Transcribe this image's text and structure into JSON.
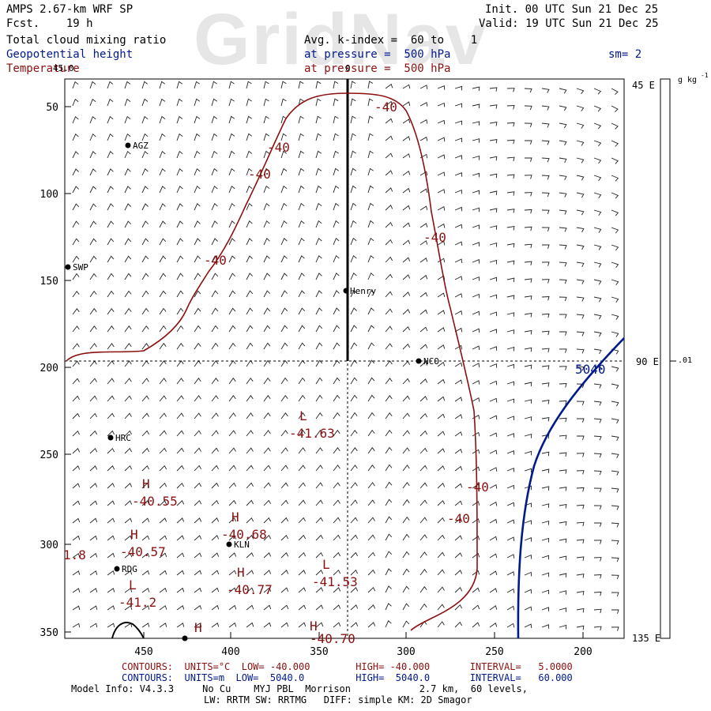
{
  "watermark": "GridNav",
  "header": {
    "title": "AMPS 2.67-km WRF SP",
    "fcst": "Fcst.    19 h",
    "init": "Init. 00 UTC Sun 21 Dec 25",
    "valid": "Valid: 19 UTC Sun 21 Dec 25",
    "field1": "Total cloud mixing ratio",
    "field2": "Geopotential height",
    "field3": "Temperature",
    "avg": "Avg. k-index =  60 to    1",
    "pressure1": "at pressure =  500 hPa",
    "pressure2": "at pressure =  500 hPa",
    "sm": "sm= 2"
  },
  "colors": {
    "temperature": "#8b1010",
    "height": "#001a8c",
    "vertical_line": "#000000"
  },
  "axes": {
    "y_ticks": [
      "50",
      "100",
      "150",
      "200",
      "250",
      "300",
      "350"
    ],
    "x_ticks": [
      "450",
      "400",
      "350",
      "300",
      "250",
      "200"
    ],
    "top_left_label": "45.0",
    "top_center_label": "0",
    "right_labels": [
      "45 E",
      "90 E",
      "135 E"
    ],
    "colorbar_unit": "g kg",
    "colorbar_exp": "-1",
    "colorbar_value": ".01"
  },
  "stations": [
    "AGZ",
    "SWP",
    "Henry",
    "NCO",
    "HRC",
    "KLN",
    "RDG"
  ],
  "contour_labels": {
    "temp": [
      "-40",
      "-40",
      "-40",
      "-40",
      "-40",
      "-40",
      "-40"
    ],
    "height": "5040"
  },
  "extrema": [
    {
      "letter": "L",
      "value": "-41.63"
    },
    {
      "letter": "H",
      "value": "-40.55"
    },
    {
      "letter": "H",
      "value": "-40.68"
    },
    {
      "letter": "H",
      "value": "-40.57"
    },
    {
      "letter": "H",
      "value": "-40.77"
    },
    {
      "letter": "L",
      "value": "-41.53"
    },
    {
      "letter": "L",
      "value": "-41.2"
    },
    {
      "letter": "H",
      "value": ""
    },
    {
      "letter": "H",
      "value": "-40.70"
    }
  ],
  "edge_label": "1.8",
  "footer": {
    "temp_contours": "CONTOURS:  UNITS=°C  LOW= -40.000        HIGH= -40.000       INTERVAL=   5.0000",
    "hgt_contours": "CONTOURS:  UNITS=m  LOW=  5040.0         HIGH=  5040.0       INTERVAL=   60.000",
    "model_info": "Model Info: V4.3.3     No Cu    MYJ PBL  Morrison            2.7 km,  60 levels,",
    "model_info2": "LW: RRTM SW: RRTMG   DIFF: simple KM: 2D Smagor"
  }
}
